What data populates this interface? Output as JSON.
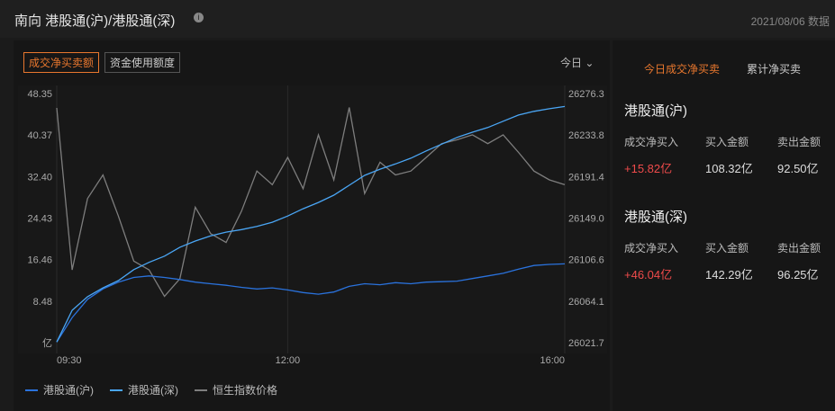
{
  "header": {
    "title": "南向 港股通(沪)/港股通(深)",
    "date": "2021/08/06 数据"
  },
  "tabs": [
    "成交净买卖额",
    "资金使用额度"
  ],
  "period": "今日",
  "chart_data": {
    "type": "line",
    "x": [
      "09:30",
      "09:40",
      "09:50",
      "10:00",
      "10:10",
      "10:20",
      "10:30",
      "10:40",
      "10:50",
      "11:00",
      "11:10",
      "11:20",
      "11:30",
      "11:40",
      "11:50",
      "12:00",
      "13:10",
      "13:20",
      "13:30",
      "13:40",
      "13:50",
      "14:00",
      "14:10",
      "14:20",
      "14:30",
      "14:40",
      "14:50",
      "15:00",
      "15:10",
      "15:20",
      "15:30",
      "15:40",
      "15:50",
      "16:00"
    ],
    "xticks": [
      "09:30",
      "12:00",
      "16:00"
    ],
    "ylim": [
      0.51,
      48.35
    ],
    "yticks": [
      {
        "value": 0.51,
        "label": "亿"
      },
      8.48,
      16.46,
      24.43,
      {
        "value": 32.4,
        "label": "32.40"
      },
      40.37,
      48.35
    ],
    "y2lim": [
      26021.7,
      26276.3
    ],
    "y2ticks": [
      26021.7,
      26064.1,
      26106.6,
      {
        "value": 26149,
        "label": "26149.0"
      },
      26191.4,
      26233.8,
      26276.3
    ],
    "grid": "x",
    "series": [
      {
        "name": "港股通(沪)",
        "color": "#2a72dc",
        "values": [
          0.8,
          5.5,
          9.0,
          11.0,
          12.3,
          13.2,
          13.5,
          13.2,
          12.8,
          12.3,
          12.0,
          11.7,
          11.3,
          11.0,
          11.2,
          10.8,
          10.3,
          10.0,
          10.4,
          11.5,
          12.0,
          11.8,
          12.2,
          12.0,
          12.3,
          12.4,
          12.5,
          13.0,
          13.5,
          14.0,
          14.8,
          15.5,
          15.7,
          15.82
        ]
      },
      {
        "name": "港股通(深)",
        "color": "#4aa6f5",
        "values": [
          0.8,
          6.9,
          9.5,
          11.2,
          12.6,
          14.7,
          16.1,
          17.3,
          19.0,
          20.2,
          21.2,
          21.9,
          22.4,
          23.0,
          23.8,
          25.0,
          26.4,
          27.6,
          29.0,
          30.9,
          32.8,
          34.0,
          35.0,
          36.1,
          37.5,
          38.8,
          40.1,
          41.1,
          42.0,
          43.2,
          44.4,
          45.1,
          45.6,
          46.04
        ]
      },
      {
        "name": "恒生指数价格",
        "color": "#7e7e7e",
        "axis": "y2",
        "values": [
          26262.5,
          26097,
          26170,
          26194,
          26152,
          26106,
          26097,
          26070,
          26088,
          26161,
          26134,
          26125,
          26157,
          26198,
          26184,
          26212,
          26180,
          26235,
          26189,
          26263,
          26175,
          26207,
          26194,
          26198,
          26212,
          26226,
          26230,
          26235,
          26226,
          26235,
          26217,
          26198,
          26189,
          26184
        ]
      }
    ]
  },
  "panel": {
    "tabs": [
      "今日成交净买卖",
      "累计净买卖"
    ],
    "sections": [
      {
        "title": "港股通(沪)",
        "columns": [
          "成交净买入",
          "买入金额",
          "卖出金额"
        ],
        "values": [
          "+15.82亿",
          "108.32亿",
          "92.50亿"
        ]
      },
      {
        "title": "港股通(深)",
        "columns": [
          "成交净买入",
          "买入金额",
          "卖出金额"
        ],
        "values": [
          "+46.04亿",
          "142.29亿",
          "96.25亿"
        ]
      }
    ]
  }
}
